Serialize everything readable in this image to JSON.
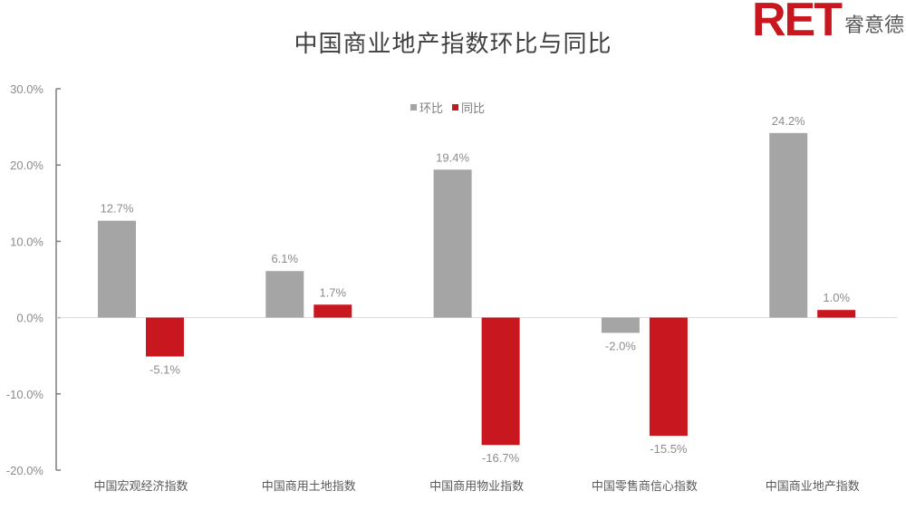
{
  "header": {
    "title": "中国商业地产指数环比与同比",
    "logo_mark": "RET",
    "logo_text": "睿意德"
  },
  "colors": {
    "mom": "#a5a5a5",
    "yoy": "#c8171e",
    "brand": "#c8171e"
  },
  "legend": {
    "items": [
      {
        "label": "环比",
        "color": "#a5a5a5"
      },
      {
        "label": "同比",
        "color": "#c8171e"
      }
    ]
  },
  "chart_data": {
    "type": "bar",
    "title": "中国商业地产指数环比与同比",
    "categories": [
      "中国宏观经济指数",
      "中国商用土地指数",
      "中国商用物业指数",
      "中国零售商信心指数",
      "中国商业地产指数"
    ],
    "series": [
      {
        "name": "环比",
        "color": "#a5a5a5",
        "values": [
          12.7,
          6.1,
          19.4,
          -2.0,
          24.2
        ],
        "labels": [
          "12.7%",
          "6.1%",
          "19.4%",
          "-2.0%",
          "24.2%"
        ]
      },
      {
        "name": "同比",
        "color": "#c8171e",
        "values": [
          -5.1,
          1.7,
          -16.7,
          -15.5,
          1.0
        ],
        "labels": [
          "-5.1%",
          "1.7%",
          "-16.7%",
          "-15.5%",
          "1.0%"
        ]
      }
    ],
    "xlabel": "",
    "ylabel": "",
    "ylim": [
      -20,
      30
    ],
    "yticks": [
      "30.0%",
      "20.0%",
      "10.0%",
      "0.0%",
      "-10.0%",
      "-20.0%"
    ],
    "grid": false,
    "legend_position": "top-center"
  }
}
